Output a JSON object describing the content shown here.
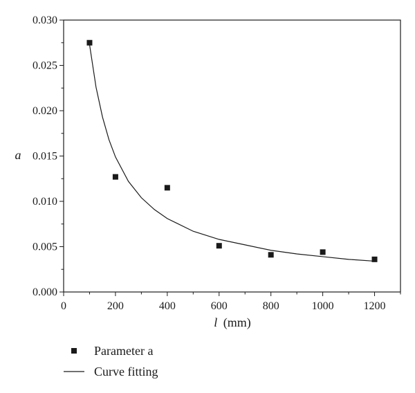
{
  "chart_data": {
    "type": "scatter",
    "xlabel_var": "l",
    "xlabel_unit": "(mm)",
    "ylabel": "a",
    "xlim": [
      0,
      1300
    ],
    "ylim": [
      0,
      0.03
    ],
    "xticks": [
      0,
      200,
      400,
      600,
      800,
      1000,
      1200
    ],
    "yticks": [
      "0.000",
      "0.005",
      "0.010",
      "0.015",
      "0.020",
      "0.025",
      "0.030"
    ],
    "grid": false,
    "legend_position": "bottom-left",
    "series": [
      {
        "name": "Parameter a",
        "kind": "points",
        "x": [
          100,
          200,
          400,
          600,
          800,
          1000,
          1200
        ],
        "y": [
          0.0275,
          0.0127,
          0.0115,
          0.0051,
          0.0041,
          0.0044,
          0.0036
        ]
      },
      {
        "name": "Curve fitting",
        "kind": "line",
        "x": [
          100,
          125,
          150,
          175,
          200,
          250,
          300,
          350,
          400,
          500,
          600,
          700,
          800,
          900,
          1000,
          1100,
          1200
        ],
        "y": [
          0.0273,
          0.0226,
          0.0193,
          0.0168,
          0.0149,
          0.0122,
          0.0104,
          0.0091,
          0.0081,
          0.0067,
          0.0058,
          0.0052,
          0.0046,
          0.0042,
          0.0039,
          0.0036,
          0.0034
        ]
      }
    ]
  }
}
